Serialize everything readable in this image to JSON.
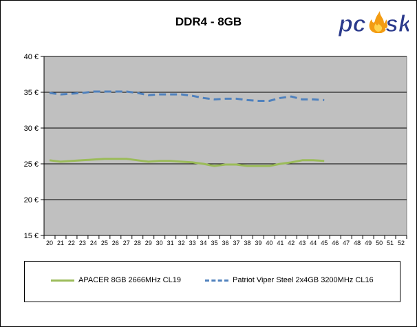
{
  "logo": {
    "text": "pc",
    "text2": "sk",
    "icon": "flame-icon"
  },
  "chart_data": {
    "type": "line",
    "title": "DDR4 - 8GB",
    "xlabel": "",
    "ylabel": "",
    "x": [
      20,
      21,
      22,
      23,
      24,
      25,
      26,
      27,
      28,
      29,
      30,
      31,
      32,
      33,
      34,
      35,
      36,
      37,
      38,
      39,
      40,
      41,
      42,
      43,
      44,
      45,
      46,
      47,
      48,
      49,
      50,
      51,
      52
    ],
    "xlim": [
      20,
      52
    ],
    "ylim": [
      15,
      40
    ],
    "yticks": [
      15,
      20,
      25,
      30,
      35,
      40
    ],
    "ytick_labels": [
      "15 €",
      "20 €",
      "25 €",
      "30 €",
      "35 €",
      "40 €"
    ],
    "grid": "horizontal",
    "plot_background": "#c0c0c0",
    "legend_position": "bottom",
    "series": [
      {
        "name": "APACER 8GB 2666MHz CL19",
        "color": "#9bbb59",
        "style": "solid",
        "x": [
          20,
          21,
          22,
          23,
          24,
          25,
          26,
          27,
          28,
          29,
          30,
          31,
          32,
          33,
          34,
          35,
          36,
          37,
          38,
          39,
          40,
          41,
          42,
          43,
          44,
          45
        ],
        "values": [
          25.5,
          25.3,
          25.4,
          25.5,
          25.6,
          25.7,
          25.7,
          25.7,
          25.5,
          25.3,
          25.4,
          25.4,
          25.3,
          25.2,
          25.0,
          24.7,
          24.9,
          24.9,
          24.7,
          24.7,
          24.7,
          25.0,
          25.2,
          25.5,
          25.5,
          25.4
        ]
      },
      {
        "name": "Patriot Viper Steel 2x4GB 3200MHz CL16",
        "color": "#4f81bd",
        "style": "dashed",
        "x": [
          20,
          21,
          22,
          23,
          24,
          25,
          26,
          27,
          28,
          29,
          30,
          31,
          32,
          33,
          34,
          35,
          36,
          37,
          38,
          39,
          40,
          41,
          42,
          43,
          44,
          45
        ],
        "values": [
          34.9,
          34.7,
          34.8,
          34.9,
          35.1,
          35.1,
          35.1,
          35.1,
          34.9,
          34.6,
          34.7,
          34.7,
          34.7,
          34.5,
          34.2,
          34.0,
          34.1,
          34.1,
          33.9,
          33.8,
          33.8,
          34.2,
          34.4,
          34.0,
          34.0,
          33.9
        ]
      }
    ]
  }
}
